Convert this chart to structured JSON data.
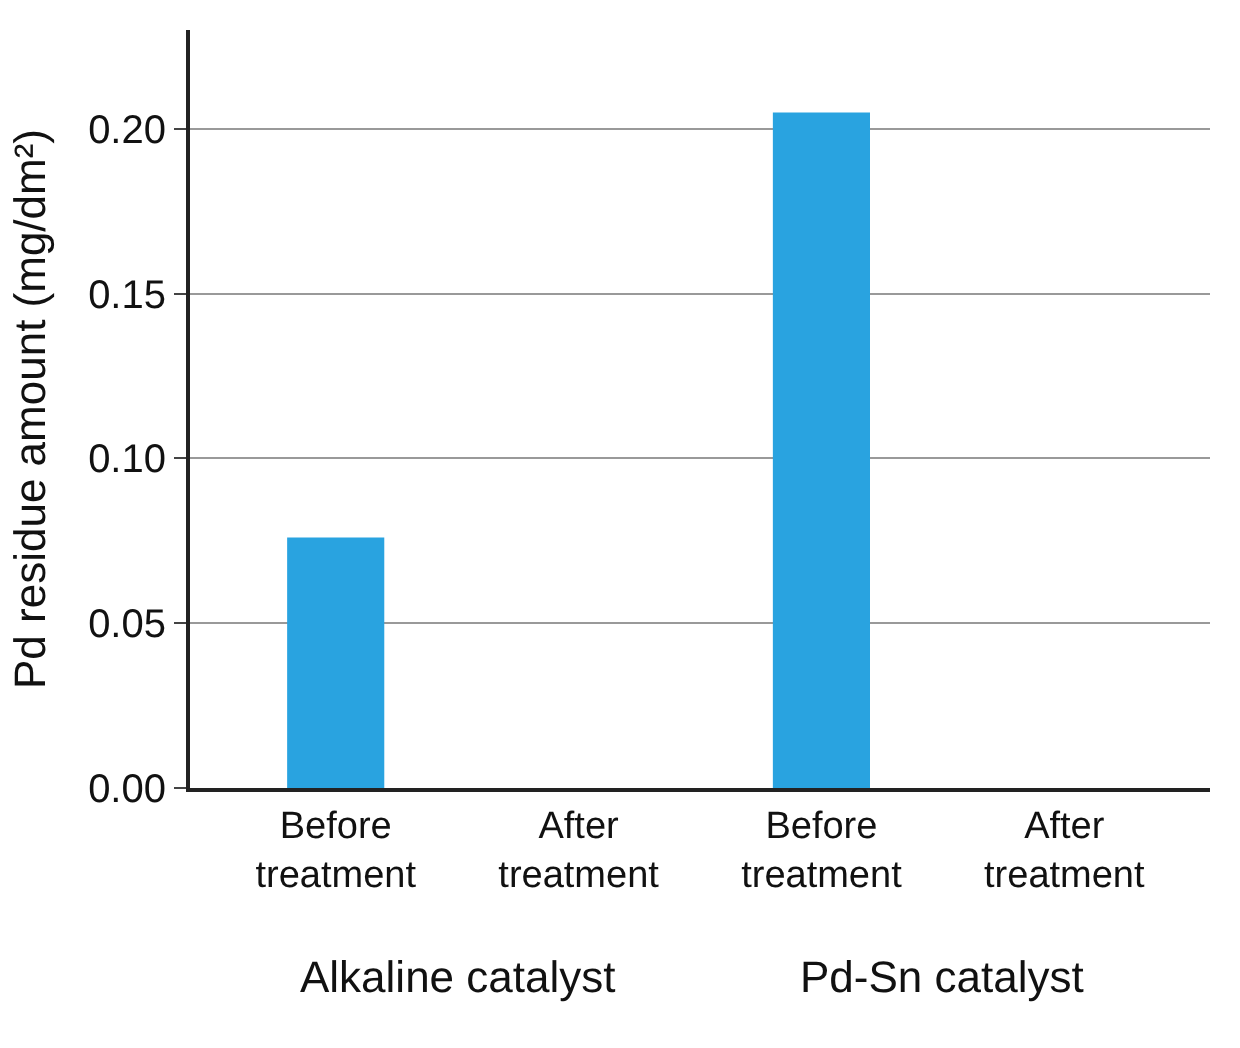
{
  "chart_data": {
    "type": "bar",
    "ylabel": "Pd residue amount (mg/dm²)",
    "categories": [
      "Before\ntreatment",
      "After\ntreatment",
      "Before\ntreatment",
      "After\ntreatment"
    ],
    "values": [
      0.076,
      0,
      0.205,
      0
    ],
    "color": "#29a3e0",
    "ylim": [
      0,
      0.23
    ],
    "yticks": [
      {
        "value": 0,
        "label": "0.00"
      },
      0.05,
      {
        "value": 0.1,
        "label": "0.10"
      },
      0.15,
      {
        "value": 0.2,
        "label": "0.20"
      }
    ],
    "grid": "y",
    "annotations": [
      "Alkaline catalyst",
      "Pd-Sn catalyst"
    ]
  }
}
